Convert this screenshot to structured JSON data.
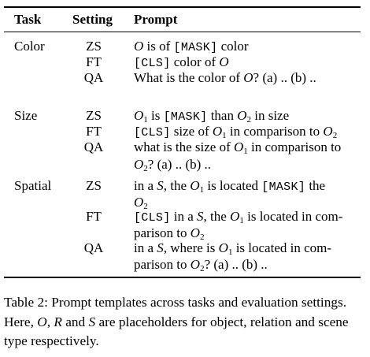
{
  "table": {
    "headers": {
      "task": "Task",
      "setting": "Setting",
      "prompt": "Prompt"
    },
    "symbols": {
      "O": "O",
      "S": "S",
      "R": "R",
      "one": "1",
      "two": "2"
    },
    "mask": "[MASK]",
    "cls": "[CLS]",
    "rows": {
      "color": {
        "task": "Color",
        "zs": {
          "setting": "ZS",
          "after_o": " is of ",
          "after_mask": " color"
        },
        "ft": {
          "setting": "FT",
          "before_o": " color of "
        },
        "qa": {
          "setting": "QA",
          "before_o": "What is the color of ",
          "after_o": "? (a) .. (b) .."
        }
      },
      "size": {
        "task": "Size",
        "zs": {
          "setting": "ZS",
          "after_o1": " is ",
          "after_mask": " than ",
          "after_o2": " in size"
        },
        "ft": {
          "setting": "FT",
          "before_o1": " size of ",
          "after_o1": " in comparison to "
        },
        "qa": {
          "setting": "QA",
          "line1_before_o1": "what is the size of ",
          "line1_after_o1": " in comparison to",
          "line2_after_o2": "? (a) .. (b) .."
        }
      },
      "spatial": {
        "task": "Spatial",
        "zs": {
          "setting": "ZS",
          "line1_a": "in a ",
          "line1_b": ", the ",
          "line1_c": " is located ",
          "line1_d": " the"
        },
        "ft": {
          "setting": "FT",
          "line1_a": " in a ",
          "line1_b": ", the ",
          "line1_c": " is located in com-",
          "line2_a": "parison to "
        },
        "qa": {
          "setting": "QA",
          "line1_a": "in a ",
          "line1_b": ", where is ",
          "line1_c": " is located in com-",
          "line2_a": "parison to ",
          "line2_b": "? (a) .. (b) .."
        }
      }
    }
  },
  "caption": {
    "text_1": "Table 2: Prompt templates across tasks and evaluation settings. Here, ",
    "sep_1": ", ",
    "sep_2": " and ",
    "text_2": " are placeholders for object, relation and scene type respectively."
  }
}
